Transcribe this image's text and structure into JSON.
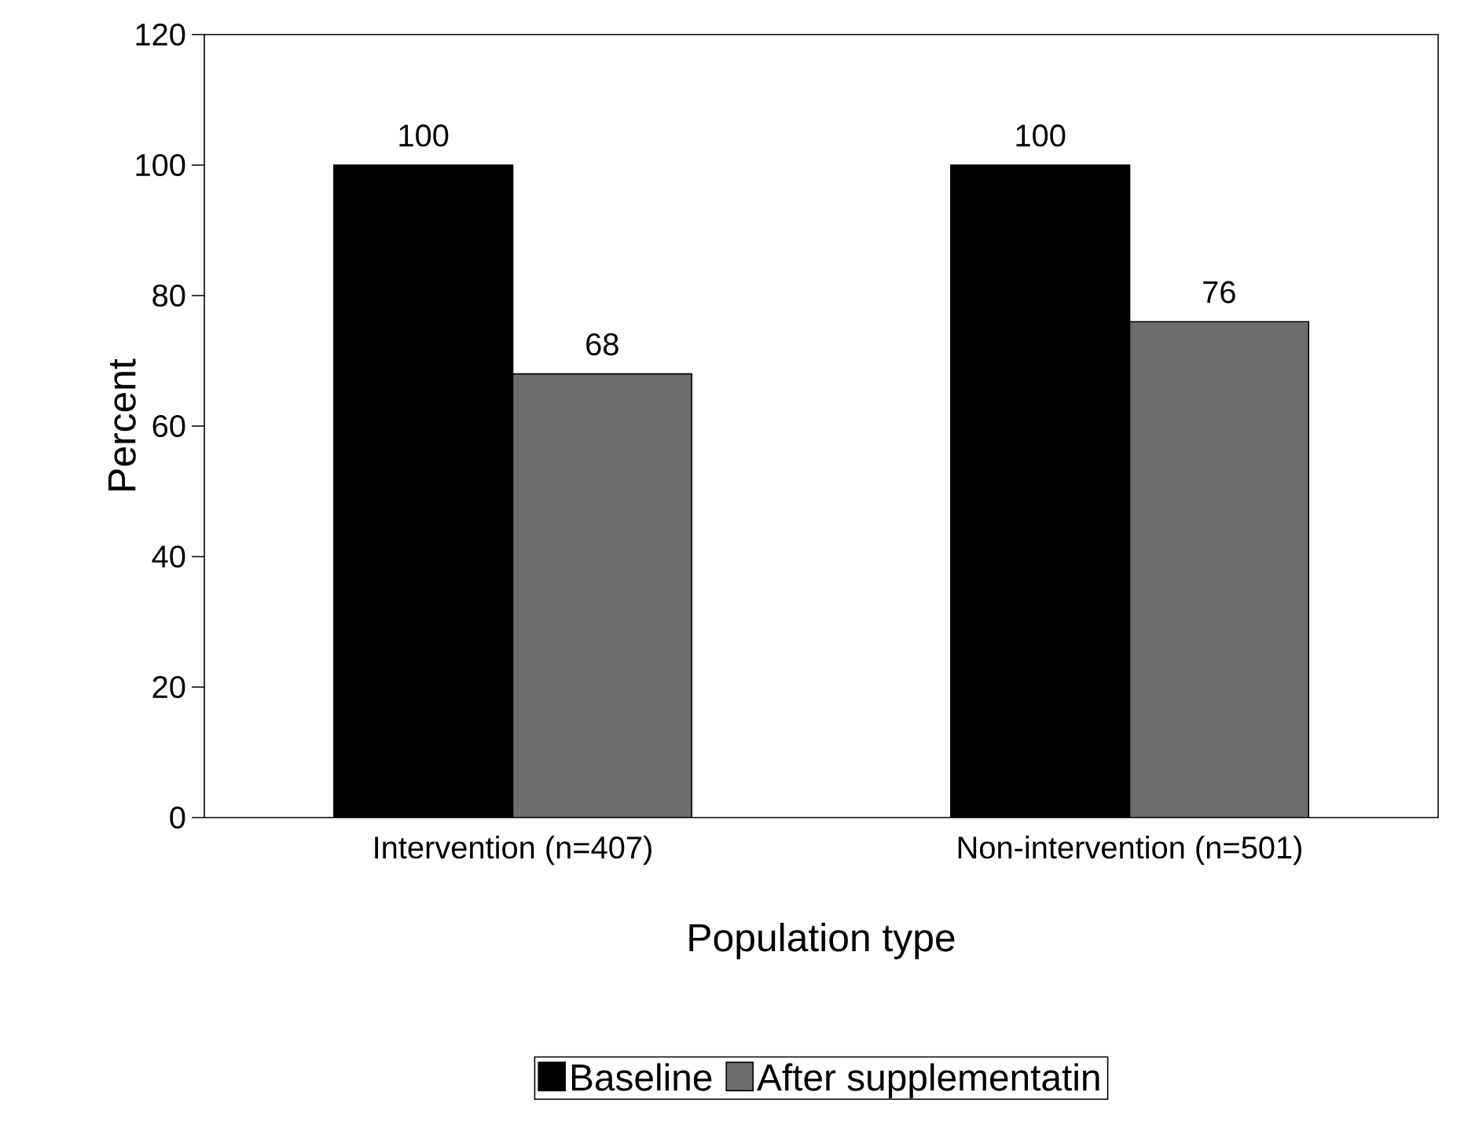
{
  "chart_data": {
    "type": "bar",
    "xlabel": "Population type",
    "ylabel": "Percent",
    "categories": [
      "Intervention (n=407)",
      "Non-intervention (n=501)"
    ],
    "series": [
      {
        "name": "Baseline",
        "color": "#000000",
        "values": [
          100,
          100
        ]
      },
      {
        "name": "After supplementatin",
        "color": "#6e6e6e",
        "values": [
          68,
          76
        ]
      }
    ],
    "ylim": [
      0,
      120
    ],
    "yticks": [
      0,
      20,
      40,
      60,
      80,
      100,
      120
    ],
    "data_labels": true,
    "legend": "bottom",
    "grid": false
  }
}
